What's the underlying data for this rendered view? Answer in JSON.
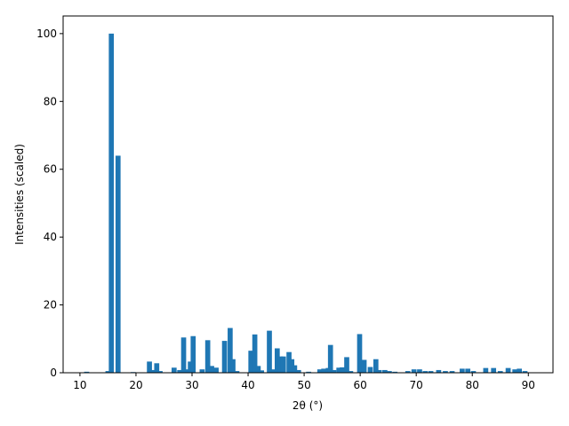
{
  "chart_data": {
    "type": "bar",
    "color": "#1f77b4",
    "x_label": "2θ (°)",
    "y_label": "Intensities (scaled)",
    "x": [
      11.2,
      15.0,
      15.6,
      16.8,
      19.5,
      22.4,
      23.0,
      23.7,
      24.3,
      26.8,
      27.8,
      28.5,
      29.2,
      29.7,
      30.2,
      31.8,
      32.8,
      33.5,
      34.3,
      35.8,
      36.8,
      37.3,
      38.0,
      40.5,
      41.2,
      41.8,
      42.4,
      43.8,
      44.6,
      45.2,
      45.8,
      46.3,
      47.3,
      47.8,
      48.3,
      49.0,
      50.8,
      52.8,
      53.5,
      54.3,
      54.7,
      55.3,
      56.2,
      56.8,
      57.6,
      58.3,
      59.9,
      60.7,
      61.8,
      62.8,
      63.4,
      64.4,
      65.2,
      66.2,
      68.5,
      69.6,
      70.6,
      71.6,
      72.6,
      74.0,
      75.2,
      76.4,
      78.2,
      79.2,
      80.2,
      82.4,
      83.8,
      85.0,
      86.4,
      87.6,
      88.4,
      89.4
    ],
    "values": [
      0.3,
      0.5,
      100,
      64,
      0.2,
      3.3,
      0.8,
      2.8,
      0.5,
      1.5,
      0.8,
      10.4,
      1,
      3.3,
      10.8,
      1,
      9.6,
      2,
      1.5,
      9.4,
      13.2,
      4,
      0.5,
      6.5,
      11.3,
      2,
      0.7,
      12.4,
      1,
      7.2,
      4.8,
      4.8,
      6.1,
      4,
      2.2,
      0.8,
      0.3,
      1,
      1.2,
      1.4,
      8.2,
      0.8,
      1.5,
      1.6,
      4.6,
      0.5,
      11.4,
      3.8,
      1.7,
      4,
      0.8,
      0.8,
      0.5,
      0.3,
      0.5,
      1,
      1,
      0.5,
      0.5,
      0.8,
      0.5,
      0.5,
      1.2,
      1.2,
      0.5,
      1.4,
      1.4,
      0.5,
      1.4,
      1,
      1.2,
      0.5
    ],
    "xlim": [
      7,
      94.4
    ],
    "ylim": [
      0,
      105.2
    ],
    "xticks": [
      10,
      20,
      30,
      40,
      50,
      60,
      70,
      80,
      90
    ],
    "yticks": [
      0,
      20,
      40,
      60,
      80,
      100
    ]
  }
}
